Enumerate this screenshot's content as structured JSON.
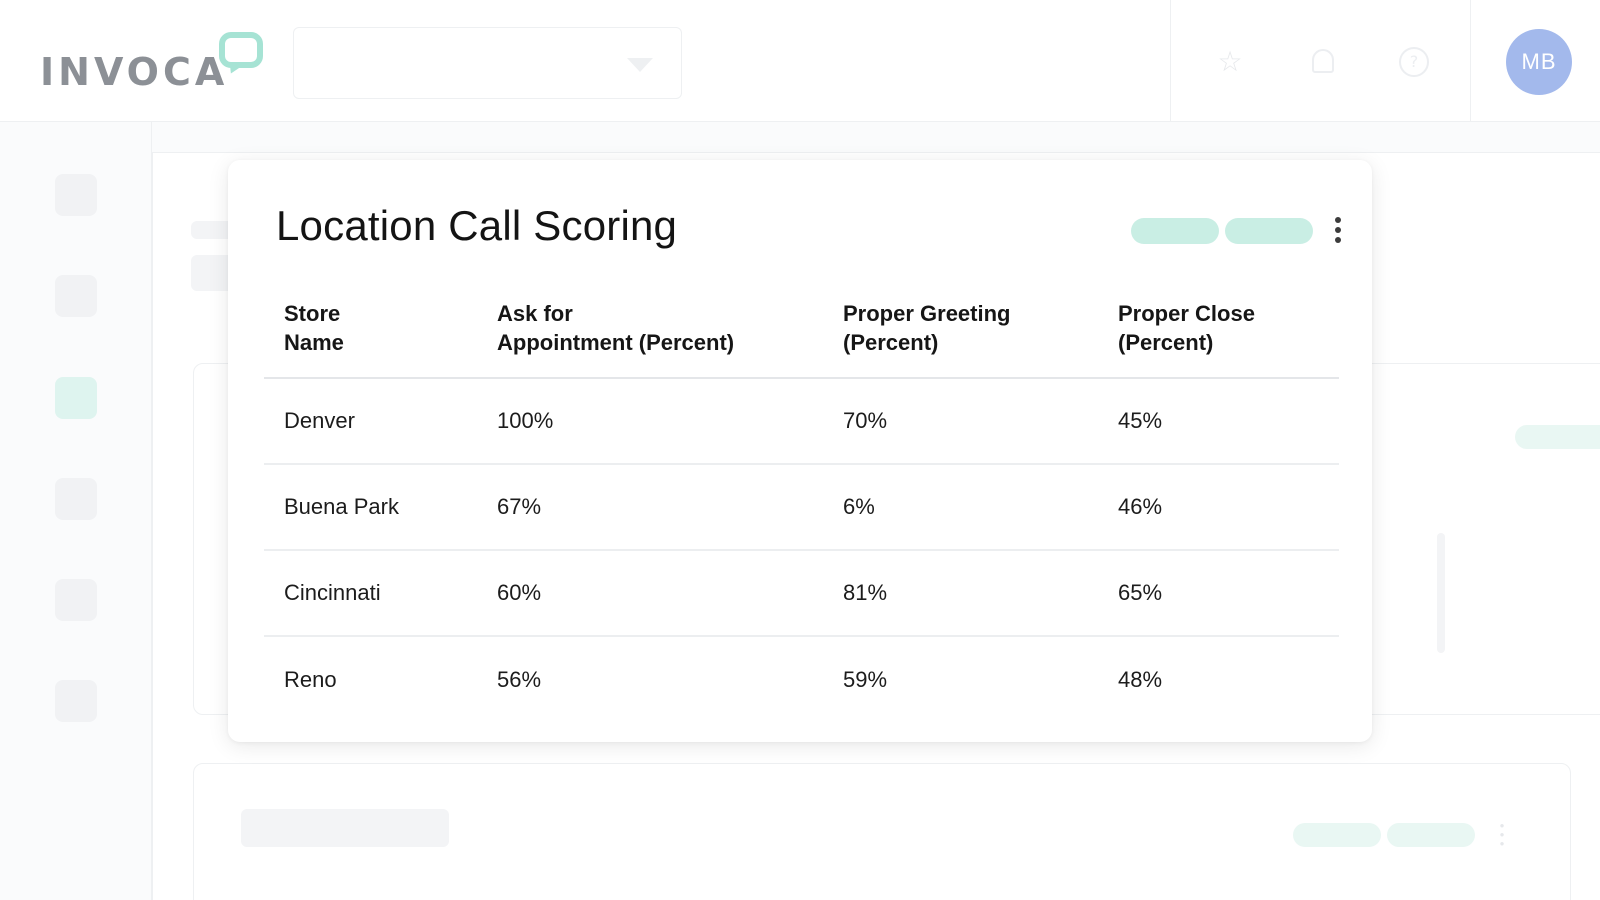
{
  "header": {
    "brand": "INVOCA",
    "avatar_initials": "MB",
    "icons": [
      "star-icon",
      "bell-icon",
      "help-icon"
    ]
  },
  "card": {
    "title": "Location Call Scoring",
    "columns": [
      {
        "line1": "Store",
        "line2": "Name"
      },
      {
        "line1": "Ask for",
        "line2": "Appointment (Percent)"
      },
      {
        "line1": "Proper Greeting",
        "line2": "(Percent)"
      },
      {
        "line1": "Proper Close",
        "line2": "(Percent)"
      }
    ],
    "rows": [
      {
        "store": "Denver",
        "ask": "100%",
        "greeting": "70%",
        "close": "45%"
      },
      {
        "store": "Buena Park",
        "ask": "67%",
        "greeting": "6%",
        "close": "46%"
      },
      {
        "store": "Cincinnati",
        "ask": "60%",
        "greeting": "81%",
        "close": "65%"
      },
      {
        "store": "Reno",
        "ask": "56%",
        "greeting": "59%",
        "close": "48%"
      }
    ]
  },
  "colors": {
    "accent_mint": "#c9eee4",
    "avatar": "#a3b9ec",
    "logo_gray": "#8c9096",
    "logo_bubble": "#a6e3d4"
  }
}
